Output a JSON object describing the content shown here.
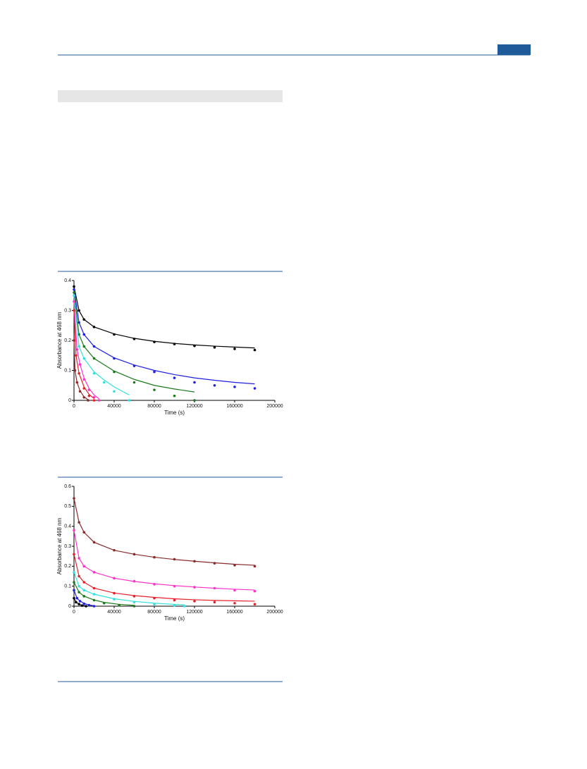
{
  "chart_data": [
    {
      "type": "scatter-fit",
      "xlabel": "Time (s)",
      "ylabel": "Absorbance at 468 nm",
      "xlim": [
        0,
        200000
      ],
      "ylim": [
        0,
        0.4
      ],
      "xticks": [
        0,
        40000,
        80000,
        120000,
        160000,
        200000
      ],
      "yticks": [
        0,
        0.1,
        0.2,
        0.3,
        0.4
      ],
      "series": [
        {
          "color": "#000000",
          "x": [
            0,
            5000,
            10000,
            20000,
            40000,
            60000,
            80000,
            100000,
            120000,
            140000,
            160000,
            180000
          ],
          "values": [
            0.38,
            0.3,
            0.27,
            0.245,
            0.22,
            0.205,
            0.195,
            0.188,
            0.182,
            0.177,
            0.172,
            0.168
          ],
          "fit": [
            0.38,
            0.3,
            0.27,
            0.245,
            0.222,
            0.207,
            0.197,
            0.19,
            0.185,
            0.181,
            0.178,
            0.175
          ]
        },
        {
          "color": "#1f1fe0",
          "x": [
            0,
            5000,
            10000,
            20000,
            40000,
            60000,
            80000,
            100000,
            120000,
            140000,
            160000,
            180000
          ],
          "values": [
            0.37,
            0.26,
            0.22,
            0.18,
            0.14,
            0.115,
            0.095,
            0.075,
            0.06,
            0.05,
            0.045,
            0.04
          ],
          "fit": [
            0.37,
            0.26,
            0.22,
            0.18,
            0.142,
            0.118,
            0.1,
            0.086,
            0.075,
            0.067,
            0.06,
            0.055
          ]
        },
        {
          "color": "#1a7a1a",
          "x": [
            0,
            5000,
            10000,
            20000,
            40000,
            60000,
            80000,
            100000,
            120000
          ],
          "values": [
            0.36,
            0.22,
            0.18,
            0.14,
            0.095,
            0.06,
            0.035,
            0.015,
            0
          ],
          "fit": [
            0.36,
            0.22,
            0.18,
            0.14,
            0.098,
            0.07,
            0.05,
            0.038,
            0.028
          ]
        },
        {
          "color": "#33e0e0",
          "x": [
            0,
            5000,
            10000,
            20000,
            30000,
            40000,
            55000
          ],
          "values": [
            0.35,
            0.18,
            0.14,
            0.09,
            0.06,
            0.03,
            0
          ],
          "fit": [
            0.35,
            0.18,
            0.14,
            0.095,
            0.068,
            0.045,
            0.018
          ]
        },
        {
          "color": "#ff33cc",
          "x": [
            0,
            3000,
            6000,
            10000,
            15000,
            20000,
            25000
          ],
          "values": [
            0.33,
            0.17,
            0.12,
            0.07,
            0.035,
            0.01,
            0
          ],
          "fit": [
            0.33,
            0.17,
            0.12,
            0.075,
            0.04,
            0.018,
            0.005
          ]
        },
        {
          "color": "#e8202a",
          "x": [
            0,
            2000,
            5000,
            10000,
            15000,
            20000
          ],
          "values": [
            0.3,
            0.15,
            0.09,
            0.04,
            0.015,
            0
          ],
          "fit": [
            0.3,
            0.15,
            0.09,
            0.045,
            0.02,
            0.006
          ]
        },
        {
          "color": "#8b2a2a",
          "x": [
            0,
            1000,
            3000,
            6000,
            10000,
            14000
          ],
          "values": [
            0.2,
            0.1,
            0.06,
            0.03,
            0.01,
            0
          ],
          "fit": [
            0.2,
            0.1,
            0.06,
            0.032,
            0.012,
            0.002
          ]
        }
      ]
    },
    {
      "type": "scatter-fit",
      "xlabel": "Time (s)",
      "ylabel": "Absorbance at 468 nm",
      "xlim": [
        0,
        200000
      ],
      "ylim": [
        0,
        0.6
      ],
      "xticks": [
        0,
        40000,
        80000,
        120000,
        160000,
        200000
      ],
      "yticks": [
        0,
        0.1,
        0.2,
        0.3,
        0.4,
        0.5,
        0.6
      ],
      "series": [
        {
          "color": "#8b2a2a",
          "x": [
            0,
            5000,
            10000,
            20000,
            40000,
            60000,
            80000,
            100000,
            120000,
            140000,
            160000,
            180000
          ],
          "values": [
            0.54,
            0.42,
            0.37,
            0.32,
            0.28,
            0.26,
            0.245,
            0.235,
            0.225,
            0.215,
            0.205,
            0.2
          ],
          "fit": [
            0.54,
            0.42,
            0.37,
            0.32,
            0.28,
            0.26,
            0.245,
            0.234,
            0.225,
            0.217,
            0.21,
            0.205
          ]
        },
        {
          "color": "#ff33cc",
          "x": [
            0,
            5000,
            10000,
            20000,
            40000,
            60000,
            80000,
            100000,
            120000,
            140000,
            160000,
            180000
          ],
          "values": [
            0.38,
            0.24,
            0.2,
            0.17,
            0.14,
            0.125,
            0.11,
            0.1,
            0.095,
            0.09,
            0.08,
            0.075
          ],
          "fit": [
            0.38,
            0.24,
            0.2,
            0.17,
            0.14,
            0.124,
            0.112,
            0.103,
            0.096,
            0.09,
            0.085,
            0.081
          ]
        },
        {
          "color": "#e8202a",
          "x": [
            0,
            5000,
            10000,
            20000,
            40000,
            60000,
            80000,
            100000,
            120000,
            140000,
            160000,
            180000
          ],
          "values": [
            0.26,
            0.15,
            0.12,
            0.09,
            0.065,
            0.05,
            0.04,
            0.03,
            0.025,
            0.02,
            0.015,
            0.01
          ],
          "fit": [
            0.26,
            0.15,
            0.12,
            0.09,
            0.066,
            0.053,
            0.044,
            0.037,
            0.032,
            0.029,
            0.027,
            0.025
          ]
        },
        {
          "color": "#33e0e0",
          "x": [
            0,
            5000,
            10000,
            20000,
            40000,
            60000,
            80000,
            100000,
            110000
          ],
          "values": [
            0.17,
            0.1,
            0.08,
            0.06,
            0.035,
            0.02,
            0.01,
            0.005,
            0
          ],
          "fit": [
            0.17,
            0.1,
            0.08,
            0.06,
            0.037,
            0.024,
            0.015,
            0.009,
            0.007
          ]
        },
        {
          "color": "#1a7a1a",
          "x": [
            0,
            5000,
            10000,
            20000,
            30000,
            45000,
            60000
          ],
          "values": [
            0.12,
            0.07,
            0.05,
            0.03,
            0.015,
            0.005,
            0
          ],
          "fit": [
            0.12,
            0.07,
            0.05,
            0.031,
            0.019,
            0.009,
            0.004
          ]
        },
        {
          "color": "#1f1fe0",
          "x": [
            0,
            3000,
            6000,
            10000,
            15000,
            20000
          ],
          "values": [
            0.08,
            0.04,
            0.025,
            0.012,
            0.005,
            0
          ],
          "fit": [
            0.08,
            0.04,
            0.026,
            0.014,
            0.006,
            0.002
          ]
        },
        {
          "color": "#000000",
          "x": [
            0,
            2000,
            5000,
            8000,
            12000
          ],
          "values": [
            0.04,
            0.02,
            0.01,
            0.003,
            0
          ],
          "fit": [
            0.04,
            0.021,
            0.01,
            0.004,
            0.001
          ]
        }
      ]
    }
  ]
}
